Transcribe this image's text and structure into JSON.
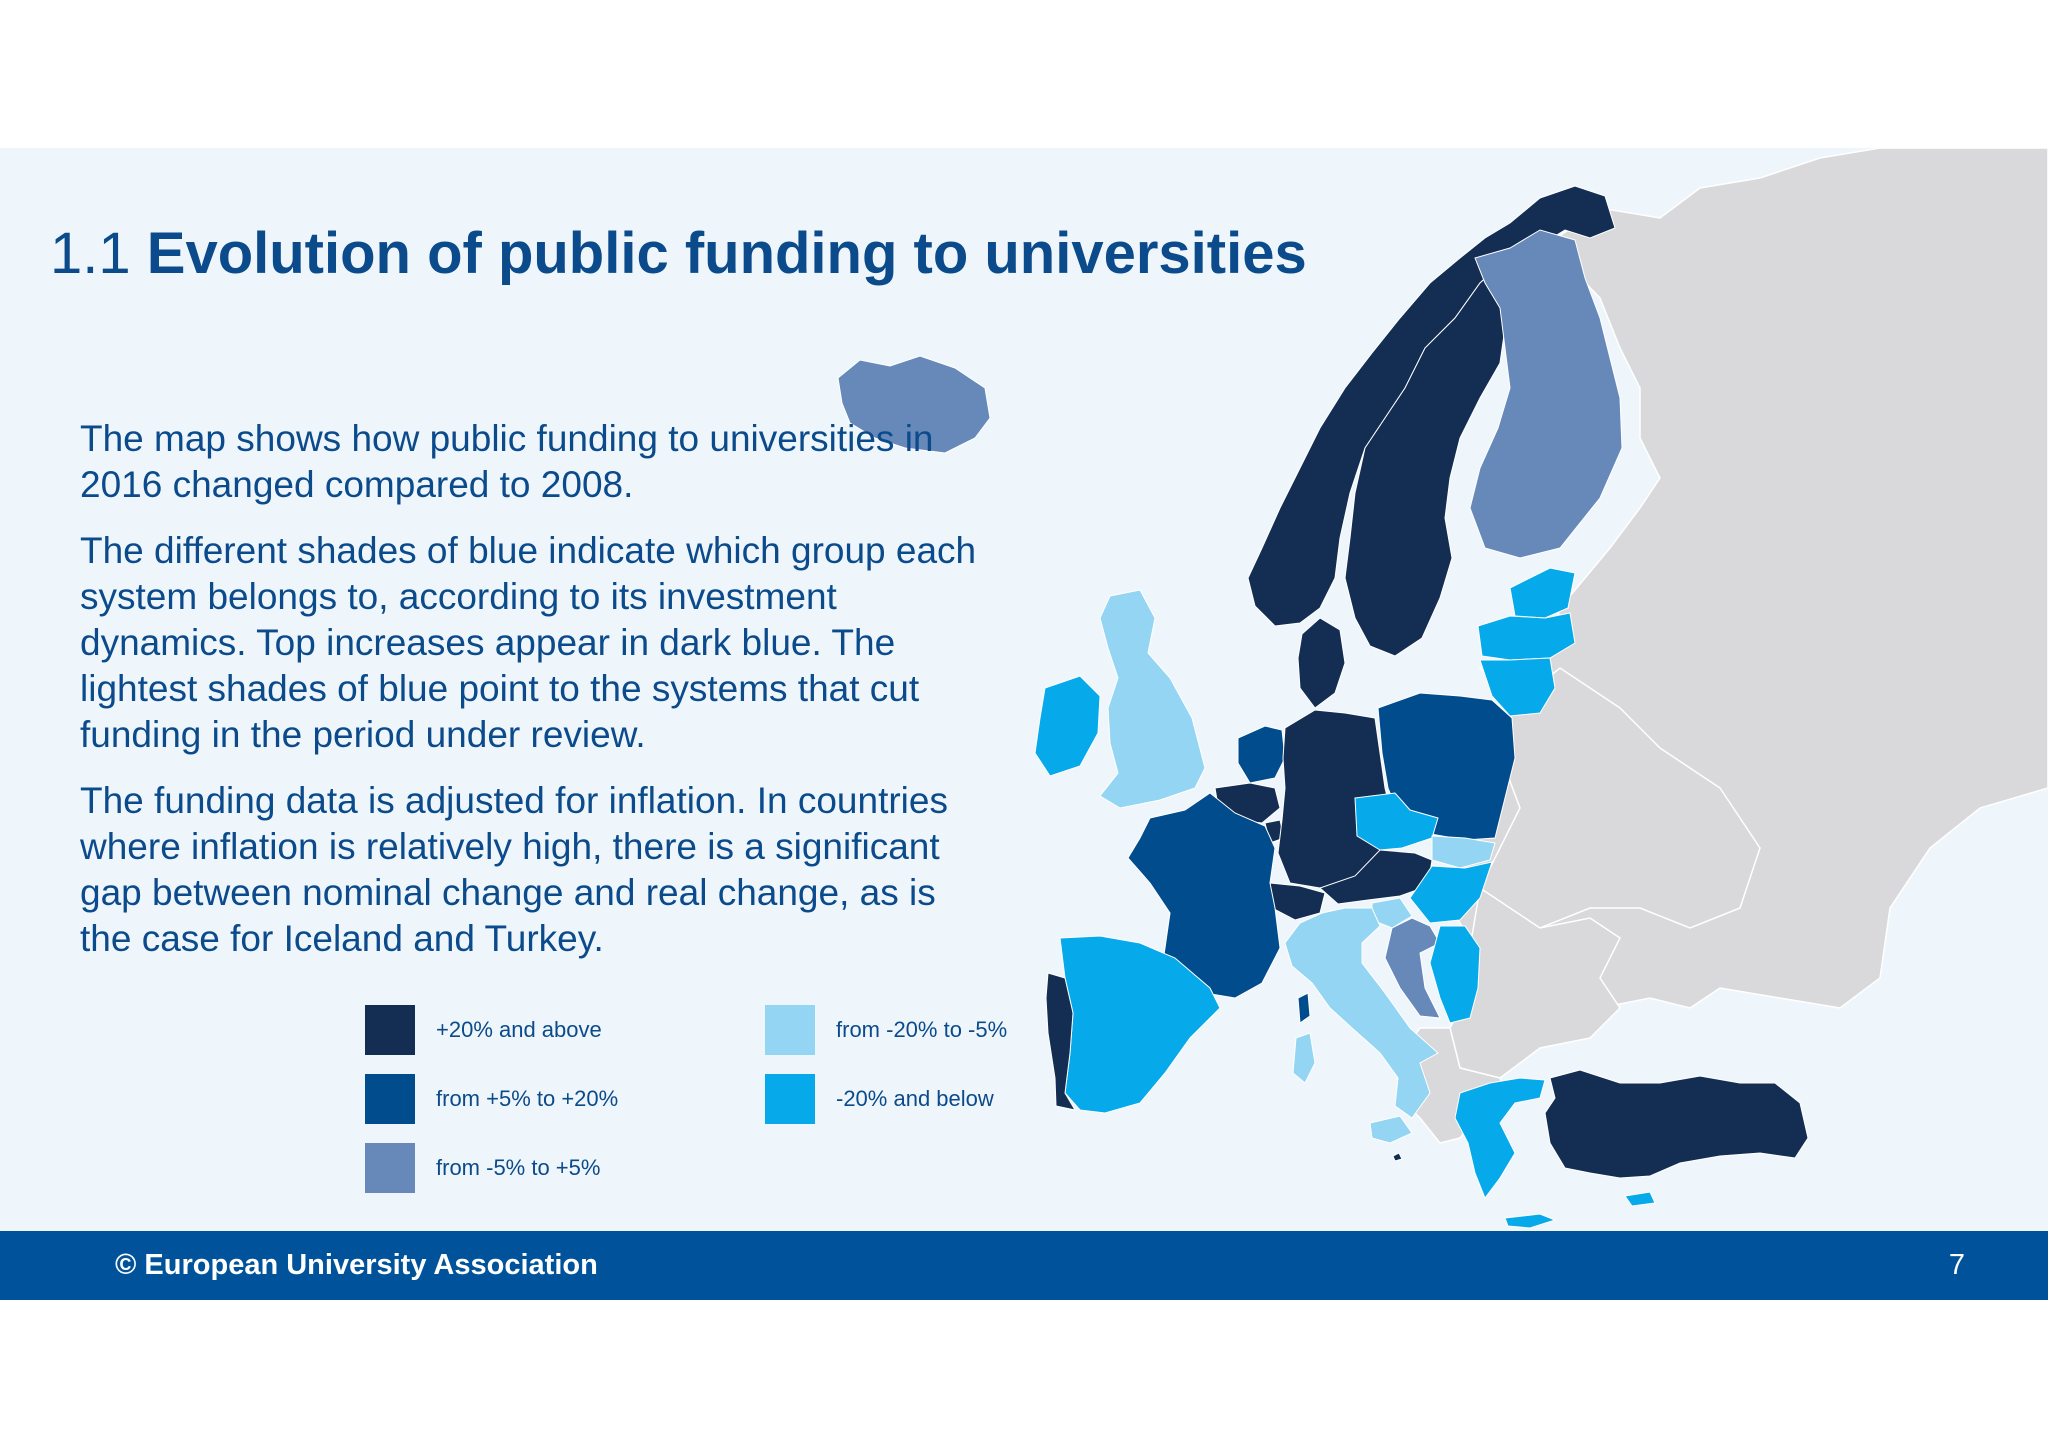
{
  "title": {
    "prefix": "1.1",
    "main": "Evolution of public funding to universities"
  },
  "paragraphs": [
    "The map shows how public funding to universities in 2016 changed compared to 2008.",
    "The different shades of blue indicate which group each system belongs to, according to its investment dynamics. Top increases appear in dark blue. The lightest shades of blue point to the systems that cut funding in the period under review.",
    "The funding data is adjusted for inflation. In countries where inflation is relatively high, there is a significant gap between nominal change and real change, as is the case for Iceland and Turkey."
  ],
  "legend": [
    {
      "label": "+20% and above",
      "color": "#142d52"
    },
    {
      "label": "from +5% to +20%",
      "color": "#004c8c"
    },
    {
      "label": "from -5% to +5%",
      "color": "#6689b9"
    },
    {
      "label": "from -20% to -5%",
      "color": "#93d5f3"
    },
    {
      "label": "-20% and below",
      "color": "#06aaea"
    }
  ],
  "colors": {
    "no_data": "#d9d9db",
    "sea": "#eef6fb",
    "accent": "#0b4a8b",
    "footer": "#00539b"
  },
  "map": {
    "countries": [
      {
        "name": "Norway",
        "group": 0
      },
      {
        "name": "Sweden",
        "group": 0
      },
      {
        "name": "Denmark",
        "group": 0
      },
      {
        "name": "Germany",
        "group": 0
      },
      {
        "name": "Belgium",
        "group": 0
      },
      {
        "name": "Luxembourg",
        "group": 0
      },
      {
        "name": "Switzerland",
        "group": 0
      },
      {
        "name": "Austria",
        "group": 0
      },
      {
        "name": "Portugal",
        "group": 0
      },
      {
        "name": "Turkey",
        "group": 0
      },
      {
        "name": "Malta",
        "group": 0
      },
      {
        "name": "France",
        "group": 1
      },
      {
        "name": "Netherlands",
        "group": 1
      },
      {
        "name": "Poland",
        "group": 1
      },
      {
        "name": "Finland",
        "group": 2
      },
      {
        "name": "Iceland",
        "group": 2
      },
      {
        "name": "Croatia",
        "group": 2
      },
      {
        "name": "United Kingdom",
        "group": 3
      },
      {
        "name": "Italy",
        "group": 3
      },
      {
        "name": "Slovakia",
        "group": 3
      },
      {
        "name": "Slovenia",
        "group": 3
      },
      {
        "name": "Ireland",
        "group": 4
      },
      {
        "name": "Spain",
        "group": 4
      },
      {
        "name": "Estonia",
        "group": 4
      },
      {
        "name": "Latvia",
        "group": 4
      },
      {
        "name": "Lithuania",
        "group": 4
      },
      {
        "name": "Czech Republic",
        "group": 4
      },
      {
        "name": "Hungary",
        "group": 4
      },
      {
        "name": "Serbia",
        "group": 4
      },
      {
        "name": "Greece",
        "group": 4
      },
      {
        "name": "Cyprus",
        "group": 4
      }
    ]
  },
  "footer": {
    "copyright": "© European University Association",
    "page": "7"
  }
}
